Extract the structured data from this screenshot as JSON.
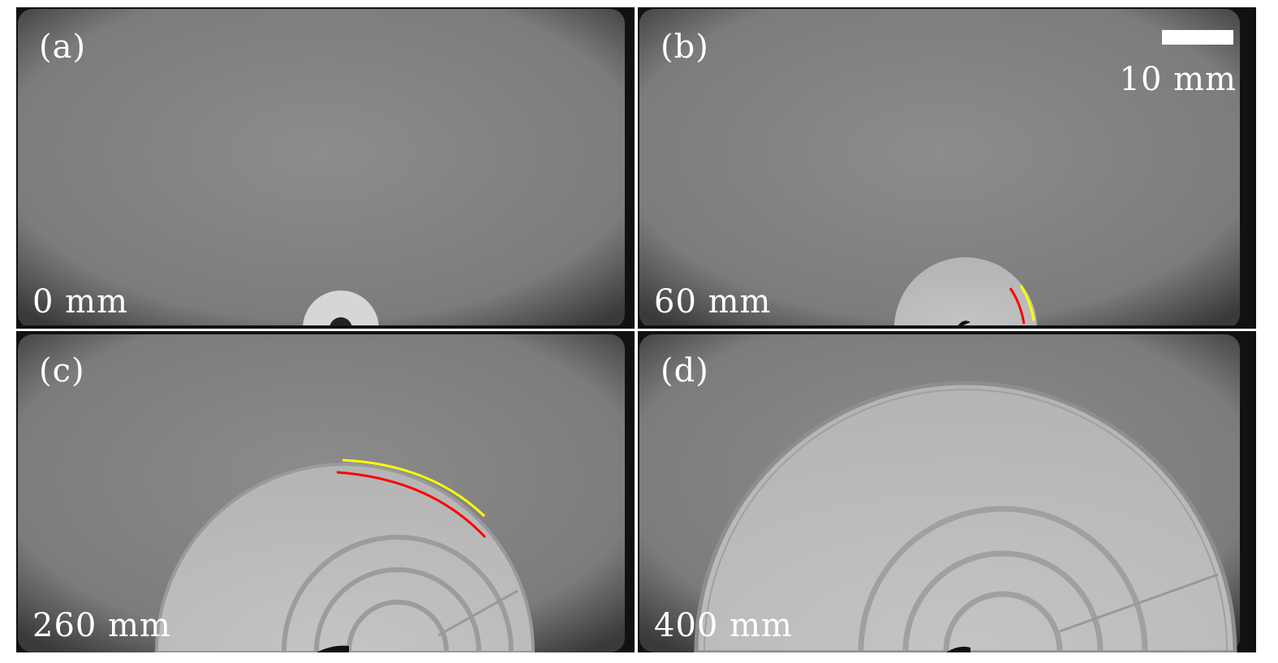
{
  "panels": [
    {
      "label": "(a)",
      "distance": "0 mm"
    },
    {
      "label": "(b)",
      "distance": "60 mm",
      "scale_bar": "10 mm"
    },
    {
      "label": "(c)",
      "distance": "260 mm"
    },
    {
      "label": "(d)",
      "distance": "400 mm"
    }
  ],
  "colors": {
    "inner_front": "#ff0000",
    "outer_front": "#ffff00"
  }
}
